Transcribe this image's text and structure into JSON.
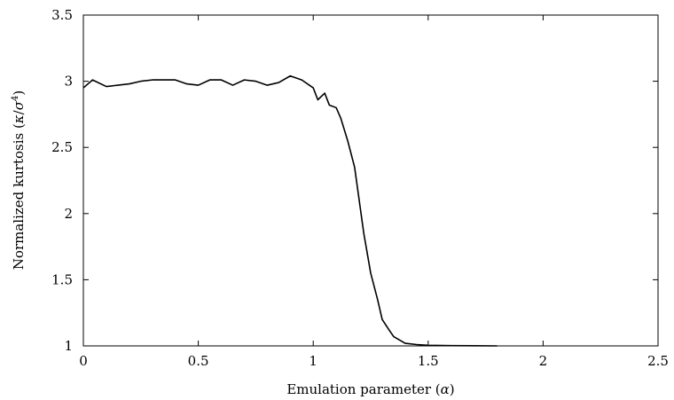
{
  "chart_data": {
    "type": "line",
    "title": "",
    "xlabel": {
      "prefix": "Emulation parameter (",
      "symbol": "α",
      "suffix": ")"
    },
    "ylabel": {
      "prefix": "Normalized kurtosis (",
      "kappa": "κ",
      "slash": "/",
      "sigma": "σ",
      "exp": "4",
      "suffix": ")"
    },
    "xlim": [
      0,
      2.5
    ],
    "ylim": [
      1,
      3.5
    ],
    "xticks": [
      0,
      0.5,
      1,
      1.5,
      2,
      2.5
    ],
    "xtick_labels": [
      "0",
      "0.5",
      "1",
      "1.5",
      "2",
      "2.5"
    ],
    "yticks": [
      1,
      1.5,
      2,
      2.5,
      3,
      3.5
    ],
    "ytick_labels": [
      "1",
      "1.5",
      "2",
      "2.5",
      "3",
      "3.5"
    ],
    "grid": false,
    "series": [
      {
        "x": [
          0,
          0.04,
          0.1,
          0.15,
          0.2,
          0.25,
          0.3,
          0.35,
          0.4,
          0.45,
          0.5,
          0.55,
          0.6,
          0.65,
          0.7,
          0.75,
          0.8,
          0.85,
          0.9,
          0.95,
          1.0,
          1.02,
          1.05,
          1.07,
          1.1,
          1.12,
          1.15,
          1.18,
          1.2,
          1.22,
          1.25,
          1.28,
          1.3,
          1.33,
          1.35,
          1.38,
          1.4,
          1.45,
          1.5,
          1.6,
          1.7,
          1.8
        ],
        "y": [
          2.95,
          3.01,
          2.96,
          2.97,
          2.98,
          3.0,
          3.01,
          3.01,
          3.01,
          2.98,
          2.97,
          3.01,
          3.01,
          2.97,
          3.01,
          3.0,
          2.97,
          2.99,
          3.04,
          3.01,
          2.95,
          2.86,
          2.91,
          2.82,
          2.8,
          2.72,
          2.55,
          2.35,
          2.1,
          1.85,
          1.55,
          1.35,
          1.2,
          1.12,
          1.07,
          1.04,
          1.02,
          1.01,
          1.005,
          1.002,
          1.001,
          1.0
        ]
      }
    ]
  }
}
